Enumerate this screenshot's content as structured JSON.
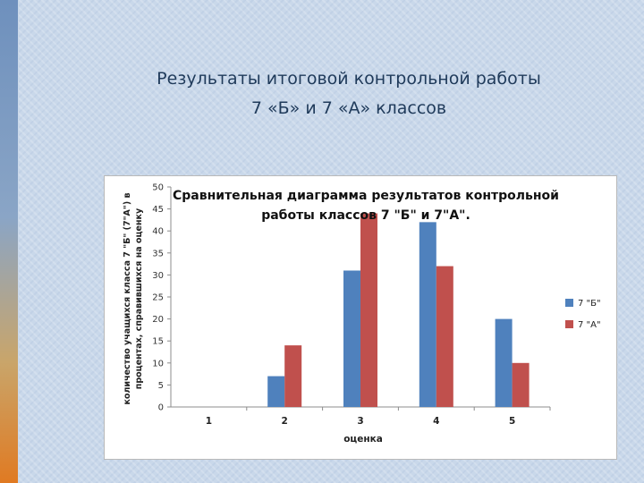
{
  "slide": {
    "title_line1": "Результаты итоговой контрольной работы",
    "title_line2": "7 «Б» и 7 «А» классов"
  },
  "colors": {
    "series1": "#4f81bd",
    "series2": "#c0504d"
  },
  "chart_data": {
    "type": "bar",
    "title_line1": "Сравнительная диаграмма результатов контрольной",
    "title_line2": "работы классов 7 \"Б\" и 7\"А\".",
    "xlabel": "оценка",
    "ylabel_line1": "количество учащихся класса 7 \"Б\" (7\"А\") в",
    "ylabel_line2": "процентах, справившихся на оценку",
    "categories": [
      "1",
      "2",
      "3",
      "4",
      "5"
    ],
    "ylim": [
      0,
      50
    ],
    "yticks": [
      0,
      5,
      10,
      15,
      20,
      25,
      30,
      35,
      40,
      45,
      50
    ],
    "grid": false,
    "legend_position": "right",
    "series": [
      {
        "name": "7 \"Б\"",
        "values": [
          0,
          7,
          31,
          42,
          20
        ]
      },
      {
        "name": "7 \"А\"",
        "values": [
          0,
          14,
          44,
          32,
          10
        ]
      }
    ]
  }
}
